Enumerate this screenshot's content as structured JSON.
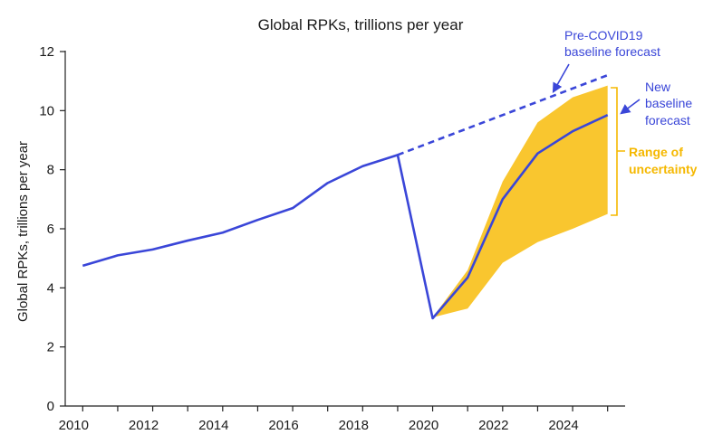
{
  "chart_data": {
    "type": "line",
    "title": "Global RPKs, trillions per year",
    "xlabel": "",
    "ylabel": "Global RPKs, trillions per year",
    "xlim": [
      2010,
      2025
    ],
    "ylim": [
      0,
      12
    ],
    "x_ticks": [
      "2010",
      "2012",
      "2014",
      "2016",
      "2018",
      "2020",
      "2022",
      "2024"
    ],
    "y_ticks": [
      "0",
      "2",
      "4",
      "6",
      "8",
      "10",
      "12"
    ],
    "grid": false,
    "series": [
      {
        "id": "actual",
        "style": "solid",
        "color": "#3a46d8",
        "x": [
          2010,
          2011,
          2012,
          2013,
          2014,
          2015,
          2016,
          2017,
          2018,
          2019,
          2020,
          2021,
          2022,
          2023,
          2024,
          2025
        ],
        "y": [
          4.75,
          5.1,
          5.3,
          5.6,
          5.87,
          6.3,
          6.7,
          7.55,
          8.12,
          8.5,
          2.97,
          4.35,
          7.0,
          8.55,
          9.3,
          9.85
        ]
      },
      {
        "id": "pre-covid",
        "style": "dashed",
        "color": "#3a46d8",
        "x": [
          2019,
          2025
        ],
        "y": [
          8.5,
          11.2
        ]
      }
    ],
    "band": {
      "color": "#f9c62f",
      "x": [
        2020,
        2021,
        2022,
        2023,
        2024,
        2025
      ],
      "upper": [
        3.0,
        4.6,
        7.6,
        9.6,
        10.45,
        10.85
      ],
      "lower": [
        3.0,
        3.3,
        4.85,
        5.55,
        6.0,
        6.5
      ]
    },
    "annotations": [
      {
        "id": "pre-covid-label",
        "lines": [
          "Pre-COVID19",
          "baseline forecast"
        ],
        "color": "#3a46d8"
      },
      {
        "id": "new-baseline-label",
        "lines": [
          "New",
          "baseline",
          "forecast"
        ],
        "color": "#3a46d8"
      },
      {
        "id": "uncertainty-label",
        "lines": [
          "Range of",
          "uncertainty"
        ],
        "color": "#f5b800"
      }
    ]
  }
}
